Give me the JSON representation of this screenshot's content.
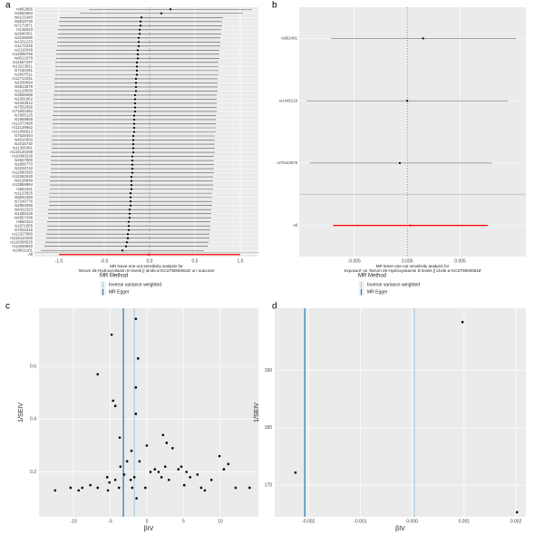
{
  "chart_data": [
    {
      "type": "forest",
      "tag": "a",
      "x_label": [
        "MR leave-one-out sensitivity analysis for",
        "'Serum 25-Hydroxyvitamin D levels || id:ebi-a-GCST90000618' on 'outcome'"
      ],
      "categories": [
        "rs862865",
        "rs4564584",
        "rs6121940",
        "rs6818730",
        "rs7172871",
        "rs138333",
        "rs2946361",
        "rs2106690",
        "rs1331233",
        "rs1172245",
        "rs2116049",
        "rs12698768",
        "rs6612978",
        "rs11567297",
        "rs13213811",
        "rs7150291",
        "rs2007511",
        "rs12713251",
        "rs4338094",
        "rs6813879",
        "rs1128530",
        "rs3836668",
        "rs2281962",
        "rs4443512",
        "rs7552656",
        "rs71842482",
        "rs7655125",
        "rs1959869",
        "rs12373468",
        "rs12139662",
        "rs12458613",
        "rs7528454",
        "rs4616650",
        "rs2015730",
        "rs11305481",
        "rs116120259",
        "rs10480226",
        "rs2947800",
        "rs1856770",
        "rs2228742",
        "rs12080393",
        "rs12452630",
        "rs8128849",
        "rs12859894",
        "rs654261",
        "rs1123825",
        "rs6834460",
        "rs7243776",
        "rs2654059",
        "rs6422323",
        "rs1355228",
        "rs6957438",
        "rs950154",
        "rs1671955",
        "rs7022315",
        "rs12327980",
        "rs116310400",
        "rs119308525",
        "rs12648660",
        "rs28631101"
      ],
      "values": [
        0.23,
        0.13,
        -0.09,
        -0.1,
        -0.1,
        -0.11,
        -0.11,
        -0.12,
        -0.12,
        -0.12,
        -0.13,
        -0.13,
        -0.13,
        -0.14,
        -0.14,
        -0.14,
        -0.14,
        -0.15,
        -0.15,
        -0.15,
        -0.15,
        -0.16,
        -0.16,
        -0.16,
        -0.16,
        -0.16,
        -0.17,
        -0.17,
        -0.17,
        -0.17,
        -0.17,
        -0.18,
        -0.18,
        -0.18,
        -0.18,
        -0.18,
        -0.19,
        -0.19,
        -0.19,
        -0.19,
        -0.19,
        -0.2,
        -0.2,
        -0.2,
        -0.2,
        -0.21,
        -0.21,
        -0.21,
        -0.21,
        -0.22,
        -0.22,
        -0.22,
        -0.23,
        -0.23,
        -0.23,
        -0.24,
        -0.24,
        -0.25,
        -0.26,
        -0.3
      ],
      "lower": [
        -0.67,
        -0.77,
        -0.99,
        -1.0,
        -1.0,
        -1.01,
        -1.01,
        -1.02,
        -1.02,
        -1.02,
        -1.03,
        -1.03,
        -1.03,
        -1.04,
        -1.04,
        -1.04,
        -1.04,
        -1.05,
        -1.05,
        -1.05,
        -1.05,
        -1.06,
        -1.06,
        -1.06,
        -1.06,
        -1.06,
        -1.07,
        -1.07,
        -1.07,
        -1.07,
        -1.07,
        -1.08,
        -1.08,
        -1.08,
        -1.08,
        -1.08,
        -1.09,
        -1.09,
        -1.09,
        -1.09,
        -1.09,
        -1.1,
        -1.1,
        -1.1,
        -1.1,
        -1.11,
        -1.11,
        -1.11,
        -1.11,
        -1.12,
        -1.12,
        -1.12,
        -1.13,
        -1.13,
        -1.13,
        -1.14,
        -1.14,
        -1.15,
        -1.16,
        -1.2
      ],
      "upper": [
        1.13,
        1.03,
        0.81,
        0.8,
        0.8,
        0.79,
        0.79,
        0.78,
        0.78,
        0.78,
        0.77,
        0.77,
        0.77,
        0.76,
        0.76,
        0.76,
        0.76,
        0.75,
        0.75,
        0.75,
        0.75,
        0.74,
        0.74,
        0.74,
        0.74,
        0.74,
        0.73,
        0.73,
        0.73,
        0.73,
        0.73,
        0.72,
        0.72,
        0.72,
        0.72,
        0.72,
        0.71,
        0.71,
        0.71,
        0.71,
        0.71,
        0.7,
        0.7,
        0.7,
        0.7,
        0.69,
        0.69,
        0.69,
        0.69,
        0.68,
        0.68,
        0.68,
        0.67,
        0.67,
        0.67,
        0.66,
        0.66,
        0.65,
        0.64,
        0.6
      ],
      "color": "#555555",
      "point_color": "#000000",
      "summary": {
        "name": "All",
        "value": -0.01,
        "lower": -1.0,
        "upper": 1.0,
        "color": "#ff0000"
      },
      "reference_line": 0,
      "xlim": [
        -1.27,
        1.2
      ],
      "xticks": [
        {
          "value": -1,
          "label": "-1.0"
        },
        -0.5,
        {
          "value": 0,
          "label": "0.0"
        },
        0.5,
        {
          "value": 1,
          "label": "1.0"
        }
      ]
    },
    {
      "type": "forest",
      "tag": "b",
      "x_label": [
        "MR leave-one-out sensitivity analysis for",
        "'exposure' on 'Serum 25-Hydroxyvitamin D levels || id:ebi-a-GCST90000618'"
      ],
      "categories": [
        "rs662481",
        "rs1445218",
        "rs70443979"
      ],
      "values": [
        0.0015,
        0.0,
        -0.0007
      ],
      "lower": [
        -0.0072,
        -0.0095,
        -0.0092
      ],
      "upper": [
        0.0103,
        0.0095,
        0.008
      ],
      "color": "#555555",
      "point_color": "#000000",
      "summary": {
        "name": "All",
        "value": 0.0003,
        "lower": -0.007,
        "upper": 0.0076,
        "color": "#ff0000"
      },
      "reference_line": 0,
      "xlim": [
        -0.0102,
        0.0112
      ],
      "xticks": [
        -0.005,
        {
          "value": 0,
          "label": "0.000"
        },
        0.005
      ]
    },
    {
      "type": "scatter",
      "tag": "c",
      "x_label": "βIV",
      "y_label": "1/SEIV",
      "x": [
        -1.5,
        -4.8,
        -6.7,
        -1.2,
        -1.5,
        -1.5,
        -4.6,
        -4.3,
        0,
        -3.7,
        -12.5,
        -10.4,
        -9.3,
        -8.8,
        -7.7,
        -6.7,
        -5.4,
        -5.1,
        -4.3,
        -3.8,
        -5.3,
        -3.1,
        -2.7,
        -2.2,
        -2.0,
        -1.7,
        -1.4,
        -1.0,
        -0.2,
        0.5,
        1.1,
        1.6,
        2.0,
        2.5,
        3.0,
        2.2,
        2.7,
        3.5,
        4.3,
        5.1,
        5.4,
        5.9,
        6.9,
        7.4,
        7.9,
        8.8,
        9.9,
        10.5,
        11.1,
        12.1,
        14.0,
        -2.1,
        -3.6,
        4.7
      ],
      "y": [
        0.78,
        0.72,
        0.57,
        0.63,
        0.52,
        0.42,
        0.47,
        0.45,
        0.3,
        0.33,
        0.13,
        0.14,
        0.13,
        0.14,
        0.15,
        0.14,
        0.18,
        0.16,
        0.17,
        0.14,
        0.13,
        0.19,
        0.24,
        0.17,
        0.14,
        0.18,
        0.1,
        0.24,
        0.14,
        0.2,
        0.21,
        0.2,
        0.18,
        0.22,
        0.17,
        0.34,
        0.31,
        0.29,
        0.21,
        0.15,
        0.2,
        0.18,
        0.19,
        0.14,
        0.13,
        0.17,
        0.26,
        0.21,
        0.23,
        0.14,
        0.14,
        0.28,
        0.22,
        0.22
      ],
      "point_color": "#000000",
      "legend_title": "MR Method",
      "lines": [
        {
          "name": "Inverse variance weighted",
          "color": "#a6cee3",
          "value": -1.7
        },
        {
          "name": "MR Egger",
          "color": "#1f78b4",
          "value": -3.2
        }
      ],
      "xlim": [
        -14.7,
        15.2
      ],
      "ylim": [
        0.03,
        0.82
      ],
      "xticks": [
        -10,
        -5,
        0,
        5,
        10
      ],
      "yticks": [
        0.2,
        0.4,
        0.6
      ],
      "grid": true
    },
    {
      "type": "scatter",
      "tag": "d",
      "x_label": "βIV",
      "y_label": "1/SEIV",
      "x": [
        0.00097,
        -0.00225,
        0.00202
      ],
      "y": [
        198.4,
        172.2,
        165.3
      ],
      "point_color": "#000000",
      "legend_title": "MR Method",
      "lines": [
        {
          "name": "Inverse variance weighted",
          "color": "#a6cee3",
          "value": 4e-05
        },
        {
          "name": "MR Egger",
          "color": "#1f78b4",
          "value": -0.00207
        }
      ],
      "xlim": [
        -0.00265,
        0.00219
      ],
      "ylim": [
        164.5,
        200.8
      ],
      "xticks": [
        -0.002,
        -0.001,
        {
          "value": 0,
          "label": "0.000"
        },
        0.001,
        0.002
      ],
      "yticks": [
        170,
        180,
        190
      ],
      "grid": true
    }
  ]
}
